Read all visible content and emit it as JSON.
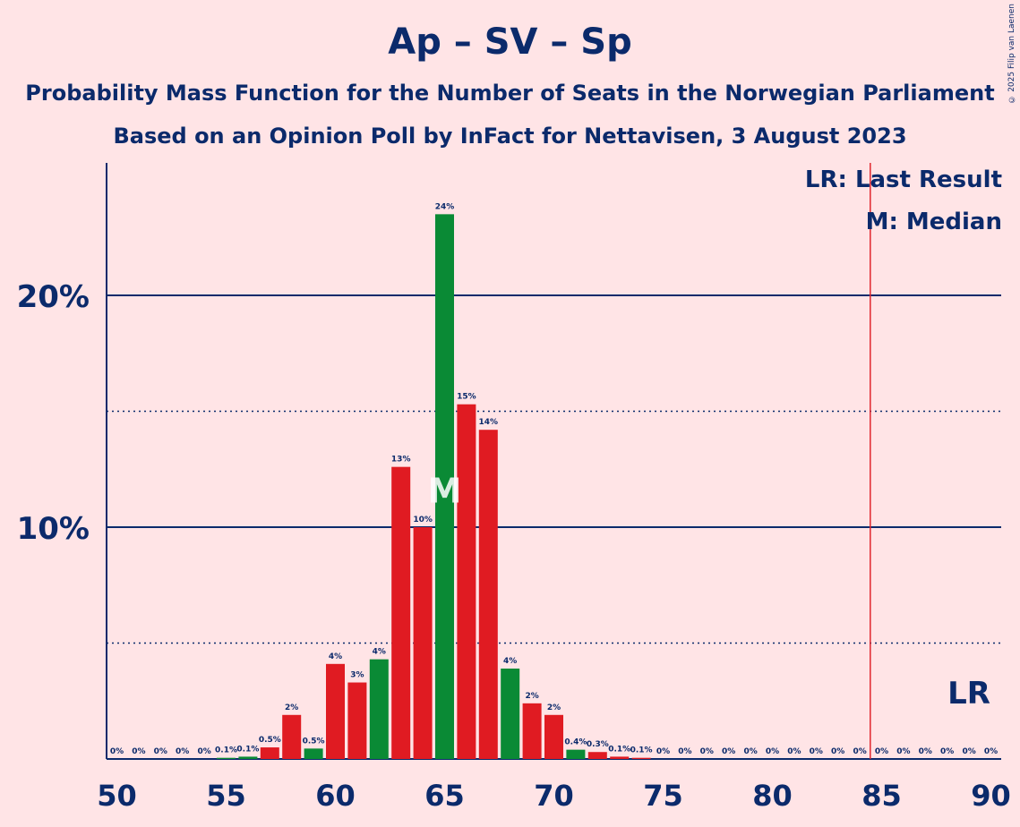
{
  "title": "Ap – SV – Sp",
  "subtitle": "Probability Mass Function for the Number of Seats in the Norwegian Parliament",
  "subtitle2": "Based on an Opinion Poll by InFact for Nettavisen, 3 August 2023",
  "copyright": "© 2025 Filip van Laenen",
  "legend": {
    "last_result": "LR: Last Result",
    "median": "M: Median"
  },
  "colors": {
    "background": "#FFE4E6",
    "text": "#0B2A6B",
    "red": "#E01B22",
    "green": "#0A8A35",
    "last_result_line": "#E0262E"
  },
  "chart_data": {
    "type": "bar",
    "x": [
      50,
      51,
      52,
      53,
      54,
      55,
      56,
      57,
      58,
      59,
      60,
      61,
      62,
      63,
      64,
      65,
      66,
      67,
      68,
      69,
      70,
      71,
      72,
      73,
      74,
      75,
      76,
      77,
      78,
      79,
      80,
      81,
      82,
      83,
      84,
      85,
      86,
      87,
      88,
      89,
      90
    ],
    "values": [
      0,
      0,
      0,
      0,
      0,
      0.05,
      0.1,
      0.5,
      1.9,
      0.45,
      4.1,
      3.3,
      4.3,
      12.6,
      10.0,
      23.5,
      15.3,
      14.2,
      3.9,
      2.4,
      1.9,
      0.4,
      0.3,
      0.1,
      0.05,
      0,
      0,
      0,
      0,
      0,
      0,
      0,
      0,
      0,
      0,
      0,
      0,
      0,
      0,
      0,
      0
    ],
    "labels": [
      "0%",
      "0%",
      "0%",
      "0%",
      "0%",
      "0.1%",
      "0.1%",
      "0.5%",
      "2%",
      "0.5%",
      "4%",
      "3%",
      "4%",
      "13%",
      "10%",
      "24%",
      "15%",
      "14%",
      "4%",
      "2%",
      "2%",
      "0.4%",
      "0.3%",
      "0.1%",
      "0.1%",
      "0%",
      "0%",
      "0%",
      "0%",
      "0%",
      "0%",
      "0%",
      "0%",
      "0%",
      "0%",
      "0%",
      "0%",
      "0%",
      "0%",
      "0%",
      "0%"
    ],
    "bar_colors": [
      "red",
      "red",
      "red",
      "red",
      "red",
      "green",
      "green",
      "red",
      "red",
      "green",
      "red",
      "red",
      "green",
      "red",
      "red",
      "green",
      "red",
      "red",
      "green",
      "red",
      "red",
      "green",
      "red",
      "red",
      "red",
      "red",
      "red",
      "red",
      "red",
      "red",
      "red",
      "red",
      "red",
      "red",
      "red",
      "red",
      "red",
      "red",
      "red",
      "red",
      "red"
    ],
    "xticks": [
      "50",
      "55",
      "60",
      "65",
      "70",
      "75",
      "80",
      "85",
      "90"
    ],
    "yticks": [
      "10%",
      "20%"
    ],
    "ylim": [
      0,
      25.7
    ],
    "solid_gridlines": [
      10,
      20
    ],
    "dotted_gridlines": [
      5,
      15
    ],
    "median": 65,
    "median_label": "M",
    "last_result": 84.5,
    "last_result_label": "LR"
  }
}
